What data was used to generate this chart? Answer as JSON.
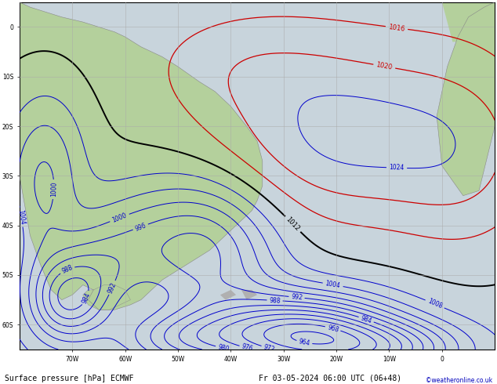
{
  "title": "Surface pressure [hPa] ECMWF",
  "datetime_label": "Fr 03-05-2024 06:00 UTC (06+48)",
  "copyright": "©weatheronline.co.uk",
  "figsize": [
    6.34,
    4.9
  ],
  "dpi": 100,
  "background_ocean": "#c8d4dc",
  "background_land": "#b4d09c",
  "land_border_color": "#888888",
  "grid_color": "#aaaaaa",
  "grid_alpha": 0.7,
  "contour_blue": "#0000cc",
  "contour_black": "#000000",
  "contour_red": "#cc0000",
  "label_fontsize": 6,
  "title_fontsize": 7,
  "lon_min": -80,
  "lon_max": 10,
  "lat_min": -65,
  "lat_max": 5,
  "grid_lons": [
    -70,
    -60,
    -50,
    -40,
    -30,
    -20,
    -10,
    0
  ],
  "grid_lats": [
    -60,
    -50,
    -40,
    -30,
    -20,
    -10,
    0
  ],
  "x_tick_labels": [
    "70W",
    "60W",
    "50W",
    "40W",
    "30W",
    "20W",
    "10W",
    "0"
  ],
  "y_tick_labels": [
    "60S",
    "50S",
    "40S",
    "30S",
    "20S",
    "10S",
    "0"
  ]
}
